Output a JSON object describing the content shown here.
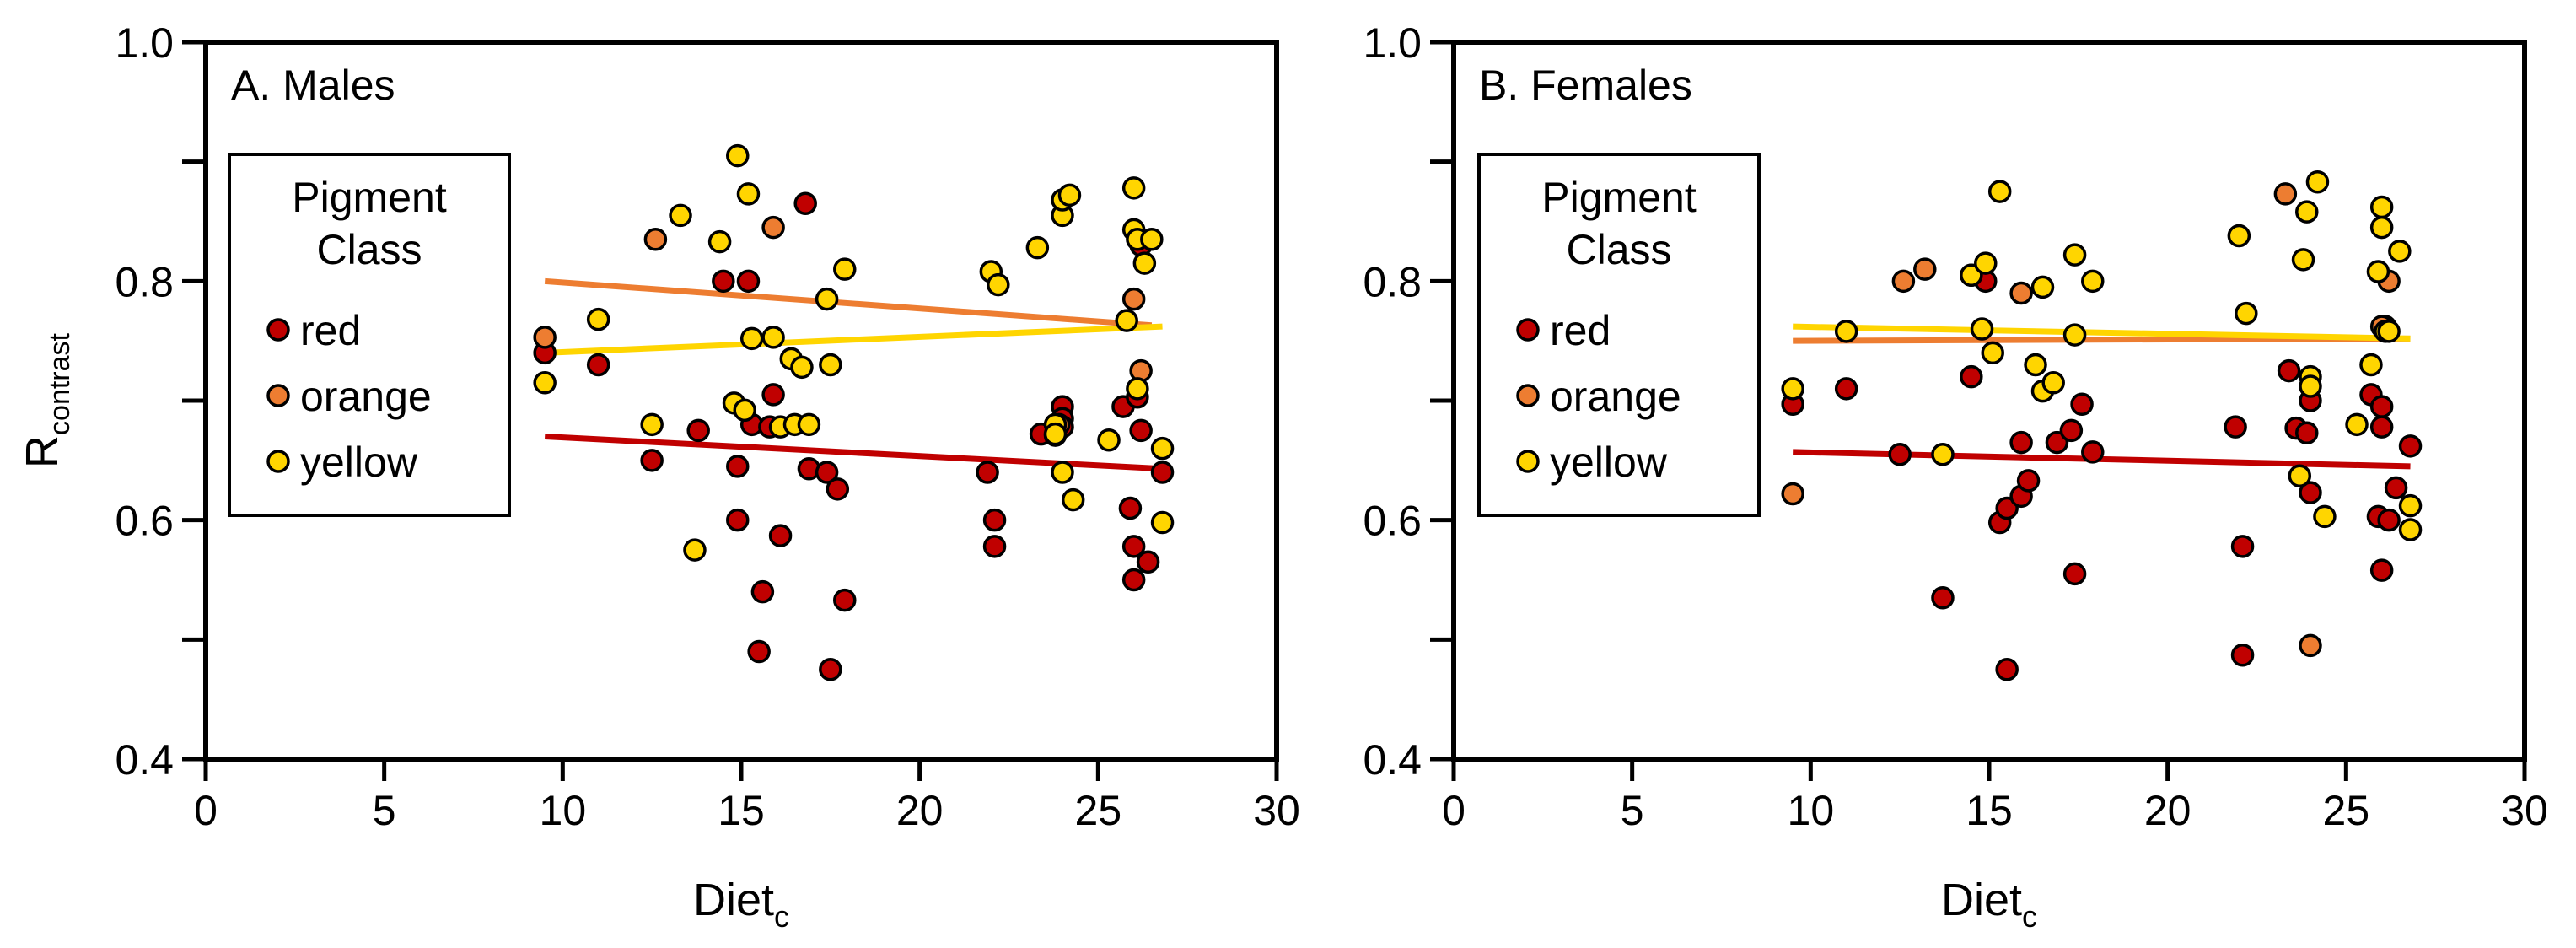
{
  "colors": {
    "red": "#c00000",
    "orange": "#ed7d31",
    "yellow": "#ffd500",
    "red_line": "#c00000",
    "orange_line": "#ed7d31",
    "yellow_line": "#ffd500"
  },
  "chart_data": [
    {
      "type": "scatter",
      "panel_label": "A. Males",
      "xlabel": "Diet",
      "xlabel_sub": "c",
      "ylabel": "R",
      "ylabel_sub": "contrast",
      "xlim": [
        0,
        30
      ],
      "ylim": [
        0.4,
        1.0
      ],
      "xticks": [
        0,
        5,
        10,
        15,
        20,
        25,
        30
      ],
      "yticks_labeled": [
        0.4,
        0.6,
        0.8,
        1.0
      ],
      "yticks_minor": [
        0.5,
        0.7,
        0.9
      ],
      "legend": {
        "title_line1": "Pigment",
        "title_line2": "Class",
        "entries": [
          "red",
          "orange",
          "yellow"
        ],
        "placement": "upper-left"
      },
      "series": [
        {
          "name": "red",
          "color": "#c00000",
          "points": [
            [
              9.5,
              0.74
            ],
            [
              11.0,
              0.73
            ],
            [
              12.5,
              0.65
            ],
            [
              13.8,
              0.675
            ],
            [
              14.5,
              0.8
            ],
            [
              14.9,
              0.645
            ],
            [
              14.9,
              0.6
            ],
            [
              15.2,
              0.8
            ],
            [
              15.3,
              0.68
            ],
            [
              15.5,
              0.49
            ],
            [
              15.6,
              0.54
            ],
            [
              15.8,
              0.678
            ],
            [
              15.9,
              0.705
            ],
            [
              16.1,
              0.587
            ],
            [
              16.8,
              0.865
            ],
            [
              16.9,
              0.643
            ],
            [
              17.4,
              0.64
            ],
            [
              17.5,
              0.475
            ],
            [
              17.7,
              0.626
            ],
            [
              17.9,
              0.533
            ],
            [
              21.9,
              0.64
            ],
            [
              22.1,
              0.6
            ],
            [
              22.1,
              0.578
            ],
            [
              23.4,
              0.672
            ],
            [
              23.8,
              0.671
            ],
            [
              24.0,
              0.695
            ],
            [
              24.0,
              0.685
            ],
            [
              24.0,
              0.678
            ],
            [
              25.7,
              0.695
            ],
            [
              25.9,
              0.61
            ],
            [
              26.0,
              0.578
            ],
            [
              26.0,
              0.55
            ],
            [
              26.1,
              0.703
            ],
            [
              26.2,
              0.83
            ],
            [
              26.2,
              0.675
            ],
            [
              26.4,
              0.565
            ],
            [
              26.8,
              0.64
            ]
          ],
          "trend": [
            [
              9.5,
              0.67
            ],
            [
              26.8,
              0.643
            ]
          ]
        },
        {
          "name": "orange",
          "color": "#ed7d31",
          "points": [
            [
              9.5,
              0.753
            ],
            [
              12.6,
              0.835
            ],
            [
              15.9,
              0.845
            ],
            [
              23.9,
              0.68
            ],
            [
              26.0,
              0.785
            ],
            [
              26.2,
              0.725
            ]
          ],
          "trend": [
            [
              9.5,
              0.8
            ],
            [
              26.5,
              0.763
            ]
          ]
        },
        {
          "name": "yellow",
          "color": "#ffd500",
          "points": [
            [
              9.5,
              0.715
            ],
            [
              11.0,
              0.768
            ],
            [
              12.5,
              0.68
            ],
            [
              13.3,
              0.855
            ],
            [
              13.7,
              0.575
            ],
            [
              14.4,
              0.833
            ],
            [
              14.8,
              0.698
            ],
            [
              14.9,
              0.905
            ],
            [
              15.1,
              0.692
            ],
            [
              15.2,
              0.873
            ],
            [
              15.3,
              0.752
            ],
            [
              15.9,
              0.753
            ],
            [
              16.1,
              0.678
            ],
            [
              16.4,
              0.735
            ],
            [
              16.5,
              0.68
            ],
            [
              16.7,
              0.728
            ],
            [
              16.9,
              0.68
            ],
            [
              17.4,
              0.785
            ],
            [
              17.5,
              0.73
            ],
            [
              17.9,
              0.81
            ],
            [
              22.0,
              0.808
            ],
            [
              22.2,
              0.797
            ],
            [
              23.3,
              0.828
            ],
            [
              23.8,
              0.68
            ],
            [
              23.8,
              0.672
            ],
            [
              24.0,
              0.855
            ],
            [
              24.0,
              0.868
            ],
            [
              24.0,
              0.64
            ],
            [
              24.2,
              0.872
            ],
            [
              24.3,
              0.617
            ],
            [
              25.3,
              0.667
            ],
            [
              25.8,
              0.767
            ],
            [
              26.0,
              0.878
            ],
            [
              26.0,
              0.843
            ],
            [
              26.1,
              0.835
            ],
            [
              26.1,
              0.71
            ],
            [
              26.3,
              0.815
            ],
            [
              26.5,
              0.835
            ],
            [
              26.8,
              0.66
            ],
            [
              26.8,
              0.598
            ]
          ],
          "trend": [
            [
              9.5,
              0.74
            ],
            [
              26.8,
              0.762
            ]
          ]
        }
      ]
    },
    {
      "type": "scatter",
      "panel_label": "B. Females",
      "xlabel": "Diet",
      "xlabel_sub": "c",
      "ylabel": "",
      "ylabel_sub": "",
      "xlim": [
        0,
        30
      ],
      "ylim": [
        0.4,
        1.0
      ],
      "xticks": [
        0,
        5,
        10,
        15,
        20,
        25,
        30
      ],
      "yticks_labeled": [
        0.4,
        0.6,
        0.8,
        1.0
      ],
      "yticks_minor": [
        0.5,
        0.7,
        0.9
      ],
      "legend": {
        "title_line1": "Pigment",
        "title_line2": "Class",
        "entries": [
          "red",
          "orange",
          "yellow"
        ],
        "placement": "upper-left"
      },
      "series": [
        {
          "name": "red",
          "color": "#c00000",
          "points": [
            [
              9.5,
              0.697
            ],
            [
              11.0,
              0.71
            ],
            [
              12.5,
              0.655
            ],
            [
              13.7,
              0.535
            ],
            [
              14.5,
              0.72
            ],
            [
              14.9,
              0.8
            ],
            [
              15.3,
              0.598
            ],
            [
              15.5,
              0.475
            ],
            [
              15.5,
              0.61
            ],
            [
              15.9,
              0.665
            ],
            [
              15.9,
              0.62
            ],
            [
              16.1,
              0.633
            ],
            [
              16.9,
              0.665
            ],
            [
              17.3,
              0.675
            ],
            [
              17.4,
              0.555
            ],
            [
              17.6,
              0.697
            ],
            [
              17.9,
              0.657
            ],
            [
              21.9,
              0.678
            ],
            [
              22.1,
              0.578
            ],
            [
              22.1,
              0.487
            ],
            [
              23.4,
              0.725
            ],
            [
              23.6,
              0.677
            ],
            [
              23.9,
              0.673
            ],
            [
              24.0,
              0.7
            ],
            [
              24.0,
              0.623
            ],
            [
              25.7,
              0.705
            ],
            [
              25.9,
              0.603
            ],
            [
              26.0,
              0.695
            ],
            [
              26.0,
              0.678
            ],
            [
              26.0,
              0.558
            ],
            [
              26.1,
              0.762
            ],
            [
              26.2,
              0.6
            ],
            [
              26.4,
              0.627
            ],
            [
              26.8,
              0.662
            ]
          ],
          "trend": [
            [
              9.5,
              0.657
            ],
            [
              26.8,
              0.645
            ]
          ]
        },
        {
          "name": "orange",
          "color": "#ed7d31",
          "points": [
            [
              9.5,
              0.622
            ],
            [
              12.6,
              0.8
            ],
            [
              13.2,
              0.81
            ],
            [
              14.5,
              0.805
            ],
            [
              15.9,
              0.79
            ],
            [
              23.3,
              0.873
            ],
            [
              24.0,
              0.495
            ],
            [
              26.0,
              0.762
            ],
            [
              26.2,
              0.8
            ]
          ],
          "trend": [
            [
              9.5,
              0.75
            ],
            [
              26.8,
              0.752
            ]
          ]
        },
        {
          "name": "yellow",
          "color": "#ffd500",
          "points": [
            [
              9.5,
              0.71
            ],
            [
              11.0,
              0.758
            ],
            [
              13.7,
              0.655
            ],
            [
              14.5,
              0.805
            ],
            [
              14.8,
              0.76
            ],
            [
              14.9,
              0.815
            ],
            [
              15.1,
              0.74
            ],
            [
              15.3,
              0.875
            ],
            [
              16.3,
              0.73
            ],
            [
              16.5,
              0.795
            ],
            [
              16.5,
              0.708
            ],
            [
              16.8,
              0.715
            ],
            [
              17.4,
              0.755
            ],
            [
              17.4,
              0.822
            ],
            [
              17.9,
              0.8
            ],
            [
              22.0,
              0.838
            ],
            [
              22.2,
              0.773
            ],
            [
              23.7,
              0.637
            ],
            [
              23.8,
              0.818
            ],
            [
              23.9,
              0.858
            ],
            [
              24.0,
              0.72
            ],
            [
              24.0,
              0.712
            ],
            [
              24.2,
              0.883
            ],
            [
              24.4,
              0.603
            ],
            [
              25.3,
              0.68
            ],
            [
              25.7,
              0.73
            ],
            [
              25.9,
              0.808
            ],
            [
              26.0,
              0.862
            ],
            [
              26.0,
              0.845
            ],
            [
              26.1,
              0.758
            ],
            [
              26.2,
              0.758
            ],
            [
              26.5,
              0.825
            ],
            [
              26.8,
              0.612
            ],
            [
              26.8,
              0.592
            ]
          ],
          "trend": [
            [
              9.5,
              0.762
            ],
            [
              26.8,
              0.752
            ]
          ]
        }
      ]
    }
  ]
}
